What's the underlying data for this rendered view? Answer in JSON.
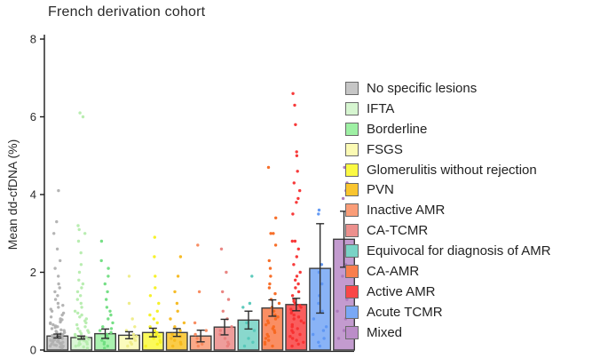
{
  "figure": {
    "title": "French derivation cohort",
    "y_axis_label": "Mean dd-cfDNA (%)"
  },
  "chart_data": {
    "type": "bar",
    "title": "French derivation cohort",
    "xlabel": "",
    "ylabel": "Mean dd-cfDNA (%)",
    "ylim": [
      0,
      8
    ],
    "yticks": [
      0,
      2,
      4,
      6,
      8
    ],
    "grid": false,
    "legend_position": "right",
    "overlay": "jittered scatter points per category with mean bar and error bars",
    "categories": [
      "No specific lesions",
      "IFTA",
      "Borderline",
      "FSGS",
      "Glomerulitis without rejection",
      "PVN",
      "Inactive AMR",
      "CA-TCMR",
      "Equivocal for diagnosis of AMR",
      "CA-AMR",
      "Active AMR",
      "Acute TCMR",
      "Mixed"
    ],
    "series": [
      {
        "name": "Mean dd-cfDNA (%)",
        "values": [
          0.36,
          0.32,
          0.42,
          0.38,
          0.45,
          0.45,
          0.36,
          0.59,
          0.77,
          1.08,
          1.17,
          2.1,
          2.85
        ]
      }
    ],
    "error_bars": [
      0.05,
      0.04,
      0.12,
      0.09,
      0.11,
      0.1,
      0.15,
      0.2,
      0.23,
      0.21,
      0.16,
      1.15,
      0.72
    ],
    "bar_colors": [
      "#c6c6c6",
      "#d6f5d0",
      "#9ef0a4",
      "#fbfab4",
      "#fbf943",
      "#f9c52f",
      "#fa9d78",
      "#ec908d",
      "#79d3c6",
      "#f97e4d",
      "#f94747",
      "#79a8f5",
      "#bb8dc8"
    ],
    "point_colors": [
      "#b0b0b0",
      "#b5ecad",
      "#6fdd7f",
      "#eeec86",
      "#f5f020",
      "#f6b81c",
      "#f8875a",
      "#e87f7c",
      "#54c7b8",
      "#f7671f",
      "#f72f2f",
      "#5d96f3",
      "#ab77ba"
    ],
    "scatter_values": [
      [
        0.05,
        0.07,
        0.08,
        0.1,
        0.1,
        0.12,
        0.13,
        0.15,
        0.15,
        0.17,
        0.18,
        0.2,
        0.2,
        0.22,
        0.23,
        0.25,
        0.25,
        0.27,
        0.28,
        0.3,
        0.3,
        0.32,
        0.33,
        0.35,
        0.35,
        0.37,
        0.38,
        0.4,
        0.4,
        0.42,
        0.45,
        0.45,
        0.48,
        0.5,
        0.52,
        0.55,
        0.58,
        0.6,
        0.62,
        0.65,
        0.68,
        0.7,
        0.72,
        0.75,
        0.78,
        0.8,
        0.85,
        0.9,
        0.95,
        1.0,
        1.05,
        1.1,
        1.15,
        1.2,
        1.3,
        1.4,
        1.5,
        1.6,
        1.7,
        1.9,
        2.1,
        2.3,
        2.6,
        3.0,
        3.3,
        4.1
      ],
      [
        0.05,
        0.08,
        0.1,
        0.12,
        0.15,
        0.15,
        0.18,
        0.2,
        0.22,
        0.25,
        0.25,
        0.28,
        0.3,
        0.3,
        0.33,
        0.35,
        0.38,
        0.4,
        0.42,
        0.45,
        0.48,
        0.5,
        0.55,
        0.6,
        0.65,
        0.7,
        0.75,
        0.8,
        0.85,
        0.9,
        0.95,
        1.0,
        1.1,
        1.2,
        1.3,
        1.4,
        1.5,
        1.6,
        1.7,
        1.8,
        2.0,
        2.2,
        2.5,
        2.8,
        3.0,
        3.1,
        3.2,
        6.0,
        6.1
      ],
      [
        0.05,
        0.1,
        0.15,
        0.2,
        0.25,
        0.3,
        0.35,
        0.4,
        0.45,
        0.5,
        0.55,
        0.6,
        0.7,
        0.8,
        0.9,
        1.0,
        1.1,
        1.3,
        1.5,
        1.7,
        1.9,
        2.1,
        2.3,
        2.8
      ],
      [
        0.1,
        0.15,
        0.2,
        0.25,
        0.3,
        0.35,
        0.4,
        0.5,
        0.6,
        0.8,
        1.2,
        1.9
      ],
      [
        0.1,
        0.15,
        0.2,
        0.25,
        0.3,
        0.35,
        0.4,
        0.45,
        0.5,
        0.6,
        0.7,
        0.8,
        0.9,
        1.0,
        1.2,
        1.4,
        1.6,
        1.9,
        2.4,
        2.9
      ],
      [
        0.1,
        0.15,
        0.2,
        0.25,
        0.3,
        0.35,
        0.4,
        0.5,
        0.6,
        0.7,
        0.8,
        1.0,
        1.2,
        1.5,
        1.9,
        2.4
      ],
      [
        0.1,
        0.15,
        0.2,
        0.3,
        0.4,
        0.5,
        0.7,
        1.5,
        2.7
      ],
      [
        0.1,
        0.15,
        0.2,
        0.3,
        0.4,
        0.5,
        0.6,
        0.8,
        1.0,
        1.3,
        1.5,
        2.0,
        2.6
      ],
      [
        0.1,
        0.2,
        0.3,
        0.5,
        0.7,
        1.1,
        1.2,
        1.9
      ],
      [
        0.1,
        0.15,
        0.2,
        0.25,
        0.3,
        0.35,
        0.4,
        0.45,
        0.5,
        0.55,
        0.6,
        0.65,
        0.7,
        0.75,
        0.8,
        0.85,
        0.9,
        1.0,
        1.1,
        1.2,
        1.3,
        1.45,
        1.6,
        1.7,
        1.9,
        2.1,
        2.3,
        2.7,
        3.0,
        3.0,
        3.4,
        4.7
      ],
      [
        0.1,
        0.15,
        0.2,
        0.25,
        0.3,
        0.35,
        0.4,
        0.45,
        0.5,
        0.55,
        0.6,
        0.65,
        0.7,
        0.75,
        0.8,
        0.85,
        0.9,
        0.95,
        1.0,
        1.05,
        1.1,
        1.15,
        1.2,
        1.25,
        1.3,
        1.4,
        1.5,
        1.6,
        1.7,
        1.8,
        1.9,
        2.0,
        2.2,
        2.4,
        2.6,
        2.8,
        2.8,
        3.5,
        3.8,
        3.9,
        4.1,
        4.3,
        4.6,
        5.0,
        5.1,
        5.8,
        6.3,
        6.6
      ],
      [
        0.1,
        0.2,
        0.3,
        0.4,
        0.5,
        0.6,
        0.8,
        1.0,
        1.2,
        1.4,
        1.7,
        2.0,
        2.2,
        3.5,
        3.6
      ],
      [
        0.3,
        0.5,
        0.8,
        1.0,
        1.3,
        1.6,
        1.9,
        2.2,
        2.5,
        3.9,
        4.1,
        4.3,
        4.7
      ]
    ]
  },
  "legend": {
    "items": [
      {
        "label": "No specific lesions",
        "color": "#c6c6c6"
      },
      {
        "label": "IFTA",
        "color": "#d6f5d0"
      },
      {
        "label": "Borderline",
        "color": "#9ef0a4"
      },
      {
        "label": "FSGS",
        "color": "#fbfab4"
      },
      {
        "label": "Glomerulitis without rejection",
        "color": "#fbf943"
      },
      {
        "label": "PVN",
        "color": "#f9c52f"
      },
      {
        "label": "Inactive AMR",
        "color": "#fa9d78"
      },
      {
        "label": "CA-TCMR",
        "color": "#ec908d"
      },
      {
        "label": "Equivocal for diagnosis of AMR",
        "color": "#79d3c6"
      },
      {
        "label": "CA-AMR",
        "color": "#f97e4d"
      },
      {
        "label": "Active AMR",
        "color": "#f94747"
      },
      {
        "label": "Acute TCMR",
        "color": "#79a8f5"
      },
      {
        "label": "Mixed",
        "color": "#bb8dc8"
      }
    ]
  },
  "style": {
    "axis_color": "#1a1a1a",
    "bar_edge_color": "#3d3d3d",
    "error_bar_color": "#2b2b2b"
  }
}
